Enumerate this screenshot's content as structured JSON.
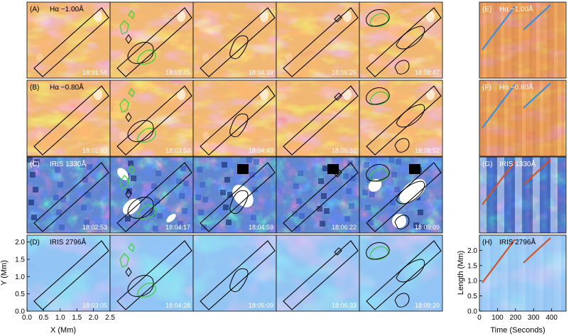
{
  "figure": {
    "rows": [
      {
        "label": "(A)",
        "title": "Hα −1.00Å",
        "palette": "orange",
        "timestamps": [
          "18:01:58",
          "18:03:45",
          "18:04:39",
          "18:06:26",
          "18:08:47"
        ],
        "timeslice_label": "(E)",
        "timeslice_title": "Hα −1.00Å",
        "timeslice_line_color": "#3a8fdc"
      },
      {
        "label": "(B)",
        "title": "Hα −0.80Å",
        "palette": "orange",
        "timestamps": [
          "18:02:03",
          "18:03:50",
          "18:04:43",
          "18:06:31",
          "18:08:52"
        ],
        "timeslice_label": "(F)",
        "timeslice_title": "Hα −0.80Å",
        "timeslice_line_color": "#3a8fdc"
      },
      {
        "label": "(C)",
        "title": "IRIS 1330Å",
        "palette": "darkblue",
        "timestamps": [
          "18:02:53",
          "18:04:17",
          "18:04:59",
          "18:06:22",
          "18:09:09"
        ],
        "timeslice_label": "(G)",
        "timeslice_title": "IRIS 1330Å",
        "timeslice_line_color": "#d2522a"
      },
      {
        "label": "(D)",
        "title": "IRIS 2796Å",
        "palette": "lightblue",
        "timestamps": [
          "18:03:05",
          "18:04:28",
          "18:05:09",
          "18:06:33",
          "18:09:20"
        ],
        "timeslice_label": "(H)",
        "timeslice_title": "IRIS 2796Å",
        "timeslice_line_color": "#d2522a"
      }
    ],
    "image_axes": {
      "xlabel": "X (Mm)",
      "ylabel": "Y (Mm)",
      "xticks": [
        "0.0",
        "0.5",
        "1.0",
        "1.5",
        "2.0",
        "2.5"
      ],
      "yticks": [
        "0.0",
        "0.5",
        "1.0",
        "1.5",
        "2.0"
      ],
      "xrange": [
        0,
        2.5
      ],
      "yrange": [
        0,
        2.2
      ]
    },
    "timeslice_axes": {
      "xlabel": "Time (Seconds)",
      "ylabel": "Length (Mm)",
      "xticks": [
        "0",
        "100",
        "200",
        "300",
        "400"
      ],
      "yticks": [
        "0.0",
        "0.5",
        "1.0",
        "1.5",
        "2.0"
      ],
      "xrange": [
        0,
        480
      ],
      "yrange": [
        0,
        2.5
      ]
    },
    "colors": {
      "slit_box": "#000000",
      "green_contour": "#3fd33f",
      "black_contour": "#000000",
      "orange_base": "#e07a2c",
      "darkblue_base": "#1e3ea0",
      "lightblue_base": "#4a90e4"
    }
  }
}
